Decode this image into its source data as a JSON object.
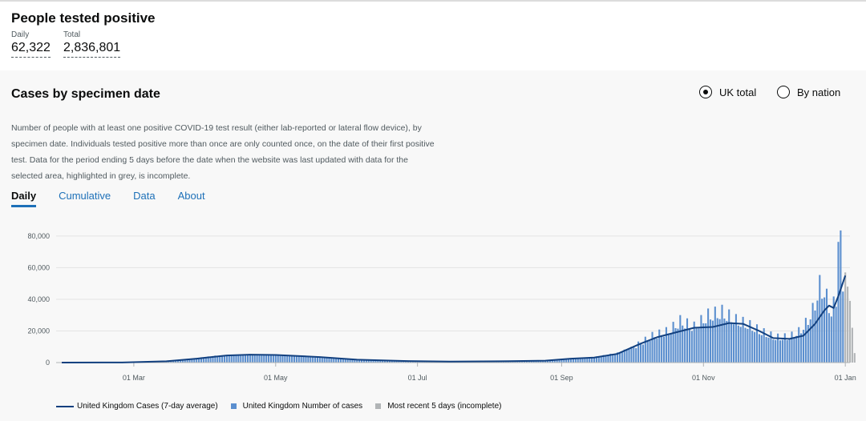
{
  "header": {
    "title": "People tested positive",
    "daily_label": "Daily",
    "daily_value": "62,322",
    "total_label": "Total",
    "total_value": "2,836,801"
  },
  "card": {
    "title": "Cases by specimen date",
    "radio_uk": "UK total",
    "radio_nation": "By nation",
    "selected": "UK total",
    "description": "Number of people with at least one positive COVID-19 test result (either lab-reported or lateral flow device), by specimen date. Individuals tested positive more than once are only counted once, on the date of their first positive test. Data for the period ending 5 days before the date when the website was last updated with data for the selected area, highlighted in grey, is incomplete."
  },
  "tabs": [
    {
      "label": "Daily"
    },
    {
      "label": "Cumulative"
    },
    {
      "label": "Data"
    },
    {
      "label": "About"
    }
  ],
  "colors": {
    "bar": "#5b8fcf",
    "line": "#12407f",
    "incomplete": "#b1b4b6",
    "link": "#1d70b8"
  },
  "chart_data": {
    "type": "bar",
    "title": "",
    "xlabel": "",
    "ylabel": "",
    "ylim": [
      0,
      85000
    ],
    "yticks": [
      0,
      20000,
      40000,
      60000,
      80000
    ],
    "ytick_labels": [
      "0",
      "20,000",
      "40,000",
      "60,000",
      "80,000"
    ],
    "x_range": [
      "2020-01-30",
      "2021-01-03"
    ],
    "xticks": [
      "2020-03-01",
      "2020-05-01",
      "2020-07-01",
      "2020-09-01",
      "2020-11-01",
      "2021-01-01"
    ],
    "xtick_labels": [
      "01 Mar",
      "01 May",
      "01 Jul",
      "01 Sep",
      "01 Nov",
      "01 Jan"
    ],
    "grid": true,
    "legend": "bottom",
    "series": [
      {
        "name": "United Kingdom Cases (7-day average)",
        "kind": "line",
        "points": [
          [
            "2020-01-30",
            0
          ],
          [
            "2020-02-25",
            50
          ],
          [
            "2020-03-15",
            800
          ],
          [
            "2020-03-28",
            2500
          ],
          [
            "2020-04-10",
            4500
          ],
          [
            "2020-04-20",
            5000
          ],
          [
            "2020-05-01",
            4800
          ],
          [
            "2020-05-20",
            3500
          ],
          [
            "2020-06-05",
            1800
          ],
          [
            "2020-06-25",
            1000
          ],
          [
            "2020-07-15",
            600
          ],
          [
            "2020-08-05",
            800
          ],
          [
            "2020-08-25",
            1200
          ],
          [
            "2020-09-05",
            2500
          ],
          [
            "2020-09-15",
            3200
          ],
          [
            "2020-09-25",
            5500
          ],
          [
            "2020-10-05",
            12000
          ],
          [
            "2020-10-12",
            16000
          ],
          [
            "2020-10-20",
            19000
          ],
          [
            "2020-10-28",
            22000
          ],
          [
            "2020-11-05",
            22500
          ],
          [
            "2020-11-12",
            25000
          ],
          [
            "2020-11-18",
            24500
          ],
          [
            "2020-11-25",
            20000
          ],
          [
            "2020-12-01",
            15500
          ],
          [
            "2020-12-08",
            15000
          ],
          [
            "2020-12-14",
            17000
          ],
          [
            "2020-12-19",
            24500
          ],
          [
            "2020-12-23",
            33000
          ],
          [
            "2020-12-25",
            36000
          ],
          [
            "2020-12-27",
            34500
          ],
          [
            "2020-12-29",
            42000
          ],
          [
            "2021-01-01",
            55000
          ]
        ]
      },
      {
        "name": "United Kingdom Number of cases",
        "kind": "bar",
        "points": [
          [
            "2020-03-01",
            100
          ],
          [
            "2020-03-15",
            900
          ],
          [
            "2020-03-28",
            2800
          ],
          [
            "2020-04-05",
            4200
          ],
          [
            "2020-04-12",
            4600
          ],
          [
            "2020-04-20",
            5100
          ],
          [
            "2020-04-28",
            4900
          ],
          [
            "2020-05-06",
            4400
          ],
          [
            "2020-05-14",
            3800
          ],
          [
            "2020-05-22",
            3100
          ],
          [
            "2020-06-01",
            2000
          ],
          [
            "2020-06-15",
            1300
          ],
          [
            "2020-07-01",
            800
          ],
          [
            "2020-07-20",
            600
          ],
          [
            "2020-08-10",
            900
          ],
          [
            "2020-08-25",
            1200
          ],
          [
            "2020-09-05",
            2600
          ],
          [
            "2020-09-15",
            3400
          ],
          [
            "2020-09-25",
            6000
          ],
          [
            "2020-10-03",
            10500
          ],
          [
            "2020-10-10",
            16500
          ],
          [
            "2020-10-17",
            19500
          ],
          [
            "2020-10-22",
            25500
          ],
          [
            "2020-10-28",
            22000
          ],
          [
            "2020-11-03",
            29000
          ],
          [
            "2020-11-09",
            31000
          ],
          [
            "2020-11-15",
            26000
          ],
          [
            "2020-11-20",
            23500
          ],
          [
            "2020-11-26",
            19000
          ],
          [
            "2020-12-02",
            15500
          ],
          [
            "2020-12-08",
            15800
          ],
          [
            "2020-12-12",
            19000
          ],
          [
            "2020-12-15",
            24000
          ],
          [
            "2020-12-18",
            32000
          ],
          [
            "2020-12-21",
            47000
          ],
          [
            "2020-12-23",
            44000
          ],
          [
            "2020-12-26",
            31000
          ],
          [
            "2020-12-28",
            40000
          ],
          [
            "2020-12-29",
            81000
          ],
          [
            "2020-12-30",
            71000
          ],
          [
            "2020-12-31",
            51000
          ]
        ]
      },
      {
        "name": "Most recent 5 days (incomplete)",
        "kind": "bar",
        "points": [
          [
            "2021-01-01",
            57000
          ],
          [
            "2021-01-02",
            48000
          ],
          [
            "2021-01-03",
            39000
          ],
          [
            "2021-01-04",
            22000
          ],
          [
            "2021-01-05",
            6000
          ]
        ]
      }
    ]
  }
}
